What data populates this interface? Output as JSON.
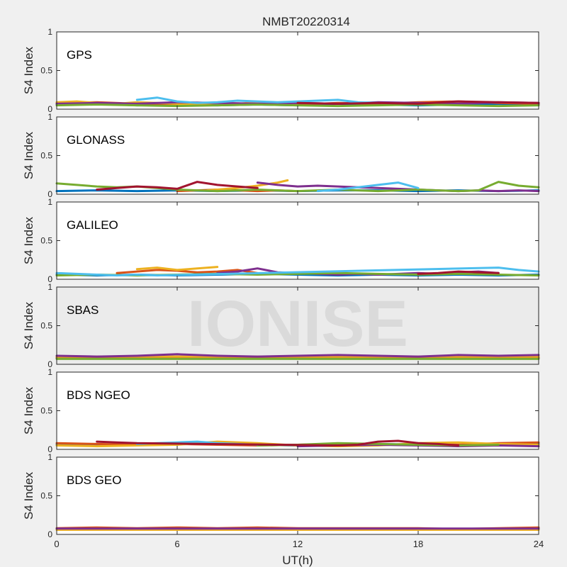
{
  "figure": {
    "title": "NMBT20220314",
    "watermark": "IONISE",
    "xlabel": "UT(h)",
    "xticks": [
      "0",
      "6",
      "12",
      "18",
      "24"
    ]
  },
  "colors": {
    "figure_bg": "#f0f0f0",
    "axes_bg": "#ffffff",
    "series": [
      "#0072BD",
      "#D95319",
      "#EDB120",
      "#7E2F8E",
      "#77AC30",
      "#4DBEEE",
      "#A2142F"
    ]
  },
  "chart_data": [
    {
      "type": "line",
      "panel_label": "GPS",
      "ylabel": "S4 Index",
      "xlim": [
        0,
        24
      ],
      "ylim": [
        0,
        1
      ],
      "yticks": [
        "0",
        "0.5",
        "1"
      ],
      "grid": false,
      "series": [
        {
          "x": [
            0,
            2,
            4,
            6,
            8,
            10,
            12,
            14,
            16,
            18,
            20,
            22,
            24
          ],
          "values": [
            0.06,
            0.07,
            0.05,
            0.06,
            0.05,
            0.06,
            0.05,
            0.07,
            0.06,
            0.05,
            0.06,
            0.07,
            0.06
          ]
        },
        {
          "x": [
            0,
            2,
            4,
            6,
            8,
            10,
            12,
            14,
            16,
            18,
            20,
            22,
            24
          ],
          "values": [
            0.08,
            0.09,
            0.07,
            0.06,
            0.08,
            0.07,
            0.06,
            0.08,
            0.07,
            0.09,
            0.1,
            0.08,
            0.07
          ]
        },
        {
          "x": [
            0,
            1,
            2,
            3,
            4,
            5,
            6,
            7,
            8,
            9,
            10,
            11,
            12
          ],
          "values": [
            0.09,
            0.1,
            0.08,
            0.07,
            0.09,
            0.08,
            0.07,
            0.06,
            0.08,
            0.07,
            0.09,
            0.08,
            0.07
          ]
        },
        {
          "x": [
            0,
            2,
            4,
            6,
            8,
            10,
            12,
            14,
            16,
            18,
            20,
            22,
            24
          ],
          "values": [
            0.07,
            0.08,
            0.07,
            0.09,
            0.08,
            0.07,
            0.08,
            0.07,
            0.09,
            0.08,
            0.07,
            0.09,
            0.08
          ]
        },
        {
          "x": [
            0,
            2,
            4,
            6,
            8,
            10,
            12,
            14,
            16,
            18,
            20,
            22,
            24
          ],
          "values": [
            0.05,
            0.06,
            0.05,
            0.04,
            0.05,
            0.06,
            0.05,
            0.04,
            0.05,
            0.06,
            0.05,
            0.04,
            0.05
          ]
        },
        {
          "x": [
            4,
            5,
            6,
            7,
            8,
            9,
            10,
            11,
            12,
            13,
            14,
            15,
            16
          ],
          "values": [
            0.12,
            0.15,
            0.1,
            0.08,
            0.09,
            0.11,
            0.1,
            0.09,
            0.1,
            0.11,
            0.12,
            0.09,
            0.08
          ]
        },
        {
          "x": [
            12,
            14,
            16,
            18,
            20,
            22,
            24
          ],
          "values": [
            0.08,
            0.07,
            0.08,
            0.07,
            0.1,
            0.09,
            0.08
          ]
        }
      ]
    },
    {
      "type": "line",
      "panel_label": "GLONASS",
      "ylabel": "S4 Index",
      "xlim": [
        0,
        24
      ],
      "ylim": [
        0,
        1
      ],
      "yticks": [
        "0",
        "0.5",
        "1"
      ],
      "grid": false,
      "series": [
        {
          "x": [
            0,
            2,
            4,
            6,
            8,
            10,
            12,
            14,
            16,
            18,
            20,
            22,
            24
          ],
          "values": [
            0.04,
            0.05,
            0.04,
            0.05,
            0.04,
            0.05,
            0.04,
            0.05,
            0.05,
            0.04,
            0.05,
            0.04,
            0.05
          ]
        },
        {
          "x": [
            6,
            7,
            8,
            9,
            10,
            11,
            12
          ],
          "values": [
            0.04,
            0.05,
            0.06,
            0.05,
            0.04,
            0.05,
            0.04
          ]
        },
        {
          "x": [
            7.5,
            8,
            9,
            10,
            11,
            11.5
          ],
          "values": [
            0.05,
            0.06,
            0.08,
            0.11,
            0.15,
            0.18
          ]
        },
        {
          "x": [
            10,
            11,
            12,
            13,
            14,
            15,
            16,
            17,
            18,
            19,
            20,
            21,
            22,
            23,
            24
          ],
          "values": [
            0.15,
            0.12,
            0.1,
            0.11,
            0.1,
            0.09,
            0.08,
            0.07,
            0.06,
            0.05,
            0.04,
            0.05,
            0.04,
            0.05,
            0.04
          ]
        },
        {
          "x": [
            0,
            1,
            2,
            3,
            4,
            5,
            6,
            7,
            8,
            9,
            10,
            11,
            12,
            13,
            14,
            15,
            16,
            17,
            18,
            19,
            20,
            21,
            22,
            23,
            24
          ],
          "values": [
            0.14,
            0.12,
            0.1,
            0.09,
            0.1,
            0.08,
            0.06,
            0.05,
            0.04,
            0.05,
            0.06,
            0.05,
            0.04,
            0.05,
            0.06,
            0.05,
            0.04,
            0.05,
            0.06,
            0.05,
            0.04,
            0.05,
            0.16,
            0.11,
            0.09
          ]
        },
        {
          "x": [
            13,
            14,
            15,
            16,
            17,
            18
          ],
          "values": [
            0.04,
            0.06,
            0.09,
            0.12,
            0.15,
            0.08
          ]
        },
        {
          "x": [
            2,
            3,
            4,
            5,
            6,
            7,
            8,
            9,
            10
          ],
          "values": [
            0.06,
            0.08,
            0.1,
            0.09,
            0.07,
            0.16,
            0.12,
            0.1,
            0.08
          ]
        }
      ]
    },
    {
      "type": "line",
      "panel_label": "GALILEO",
      "ylabel": "S4 Index",
      "xlim": [
        0,
        24
      ],
      "ylim": [
        0,
        1
      ],
      "yticks": [
        "0",
        "0.5",
        "1"
      ],
      "grid": false,
      "series": [
        {
          "x": [
            0,
            2,
            4,
            6,
            8,
            10,
            12,
            14,
            16,
            18,
            20,
            22,
            24
          ],
          "values": [
            0.06,
            0.05,
            0.06,
            0.05,
            0.06,
            0.07,
            0.06,
            0.05,
            0.06,
            0.05,
            0.06,
            0.05,
            0.06
          ]
        },
        {
          "x": [
            3,
            4,
            5,
            6,
            7,
            8,
            9,
            10
          ],
          "values": [
            0.08,
            0.1,
            0.12,
            0.11,
            0.09,
            0.1,
            0.12,
            0.08
          ]
        },
        {
          "x": [
            4,
            5,
            6,
            7,
            8
          ],
          "values": [
            0.13,
            0.15,
            0.12,
            0.14,
            0.16
          ]
        },
        {
          "x": [
            8,
            9,
            10,
            11,
            12,
            13,
            14,
            15,
            16,
            17,
            18,
            19,
            20,
            21,
            22
          ],
          "values": [
            0.08,
            0.1,
            0.14,
            0.09,
            0.08,
            0.07,
            0.06,
            0.07,
            0.06,
            0.07,
            0.08,
            0.07,
            0.09,
            0.1,
            0.08
          ]
        },
        {
          "x": [
            0,
            2,
            4,
            6,
            8,
            10,
            12,
            14,
            16,
            18,
            20,
            22,
            24
          ],
          "values": [
            0.05,
            0.06,
            0.05,
            0.06,
            0.07,
            0.06,
            0.07,
            0.08,
            0.07,
            0.06,
            0.07,
            0.06,
            0.05
          ]
        },
        {
          "x": [
            0,
            1,
            2,
            3,
            4,
            5,
            22,
            23,
            24
          ],
          "values": [
            0.08,
            0.07,
            0.06,
            0.05,
            0.06,
            0.05,
            0.15,
            0.12,
            0.1
          ]
        },
        {
          "x": [
            18,
            19,
            20,
            21,
            22
          ],
          "values": [
            0.07,
            0.08,
            0.1,
            0.09,
            0.08
          ]
        }
      ]
    },
    {
      "type": "line",
      "panel_label": "SBAS",
      "ylabel": "S4 Index",
      "xlim": [
        0,
        24
      ],
      "ylim": [
        0,
        1
      ],
      "yticks": [
        "0",
        "0.5",
        "1"
      ],
      "grid": false,
      "series": [
        {
          "x": [
            0,
            24
          ],
          "values": [
            0.08,
            0.08
          ]
        },
        {
          "x": [
            0,
            24
          ],
          "values": [
            0.09,
            0.09
          ]
        },
        {
          "x": [
            0,
            24
          ],
          "values": [
            0.1,
            0.1
          ]
        },
        {
          "x": [
            0,
            2,
            4,
            6,
            8,
            10,
            12,
            14,
            16,
            18,
            20,
            22,
            24
          ],
          "values": [
            0.11,
            0.1,
            0.11,
            0.13,
            0.11,
            0.1,
            0.11,
            0.12,
            0.11,
            0.1,
            0.12,
            0.11,
            0.12
          ]
        },
        {
          "x": [
            0,
            24
          ],
          "values": [
            0.07,
            0.07
          ]
        }
      ]
    },
    {
      "type": "line",
      "panel_label": "BDS NGEO",
      "ylabel": "S4 Index",
      "xlim": [
        0,
        24
      ],
      "ylim": [
        0,
        1
      ],
      "yticks": [
        "0",
        "0.5",
        "1"
      ],
      "grid": false,
      "series": [
        {
          "x": [
            0,
            2,
            4,
            6,
            8,
            10,
            12,
            14,
            16,
            18,
            20,
            22,
            24
          ],
          "values": [
            0.06,
            0.05,
            0.06,
            0.07,
            0.08,
            0.06,
            0.05,
            0.06,
            0.07,
            0.06,
            0.05,
            0.06,
            0.07
          ]
        },
        {
          "x": [
            0,
            2,
            4,
            6,
            8,
            10,
            12,
            14,
            16,
            18,
            20,
            22,
            24
          ],
          "values": [
            0.08,
            0.07,
            0.06,
            0.07,
            0.06,
            0.05,
            0.06,
            0.07,
            0.06,
            0.07,
            0.06,
            0.08,
            0.09
          ]
        },
        {
          "x": [
            0,
            2,
            4,
            6,
            8,
            10,
            12,
            14,
            16,
            18,
            20,
            22,
            24
          ],
          "values": [
            0.05,
            0.04,
            0.05,
            0.06,
            0.1,
            0.08,
            0.05,
            0.04,
            0.05,
            0.08,
            0.09,
            0.07,
            0.06
          ]
        },
        {
          "x": [
            12,
            14,
            16,
            18,
            20,
            22,
            24
          ],
          "values": [
            0.04,
            0.05,
            0.06,
            0.05,
            0.04,
            0.05,
            0.04
          ]
        },
        {
          "x": [
            10,
            12,
            14,
            16,
            18,
            20,
            22
          ],
          "values": [
            0.05,
            0.06,
            0.08,
            0.07,
            0.06,
            0.05,
            0.06
          ]
        },
        {
          "x": [
            4,
            5,
            6,
            7,
            8,
            9,
            10
          ],
          "values": [
            0.07,
            0.08,
            0.09,
            0.1,
            0.08,
            0.07,
            0.06
          ]
        },
        {
          "x": [
            2,
            3,
            4,
            14,
            15,
            16,
            17,
            18,
            19,
            20
          ],
          "values": [
            0.1,
            0.09,
            0.08,
            0.05,
            0.06,
            0.1,
            0.11,
            0.08,
            0.07,
            0.05
          ]
        }
      ]
    },
    {
      "type": "line",
      "panel_label": "BDS GEO",
      "ylabel": "S4 Index",
      "xlim": [
        0,
        24
      ],
      "ylim": [
        0,
        1
      ],
      "yticks": [
        "0",
        "0.5",
        "1"
      ],
      "grid": false,
      "series": [
        {
          "x": [
            0,
            24
          ],
          "values": [
            0.07,
            0.07
          ]
        },
        {
          "x": [
            0,
            2,
            4,
            6,
            8,
            10,
            12,
            14,
            16,
            18,
            20,
            22,
            24
          ],
          "values": [
            0.08,
            0.09,
            0.08,
            0.09,
            0.08,
            0.09,
            0.08,
            0.08,
            0.08,
            0.08,
            0.07,
            0.08,
            0.09
          ]
        },
        {
          "x": [
            0,
            24
          ],
          "values": [
            0.06,
            0.06
          ]
        },
        {
          "x": [
            0,
            24
          ],
          "values": [
            0.075,
            0.075
          ]
        }
      ]
    }
  ]
}
